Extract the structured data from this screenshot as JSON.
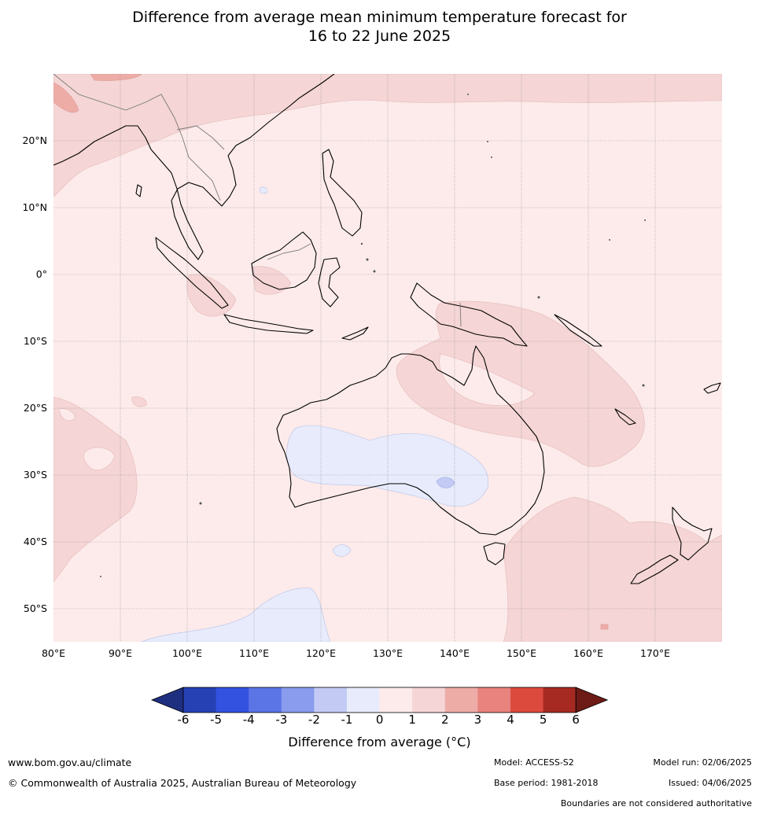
{
  "title": {
    "line1": "Difference from average mean minimum temperature forecast for",
    "line2": "16 to 22 June 2025"
  },
  "map": {
    "lat_ticks": [
      "20°N",
      "10°N",
      "0°",
      "10°S",
      "20°S",
      "30°S",
      "40°S",
      "50°S"
    ],
    "lon_ticks": [
      "80°E",
      "90°E",
      "100°E",
      "110°E",
      "120°E",
      "130°E",
      "140°E",
      "150°E",
      "160°E",
      "170°E"
    ],
    "extent": {
      "lon_min": 80,
      "lon_max": 180,
      "lat_min": -55,
      "lat_max": 30
    }
  },
  "legend": {
    "labels": [
      "-6",
      "-5",
      "-4",
      "-3",
      "-2",
      "-1",
      "0",
      "1",
      "2",
      "3",
      "4",
      "5",
      "6"
    ],
    "colors": [
      "#1e2f80",
      "#2641b4",
      "#3352e0",
      "#5b74e6",
      "#8a9ced",
      "#c3cbf4",
      "#e7ebfb",
      "#fcebea",
      "#f5d5d5",
      "#eeaca7",
      "#e8837e",
      "#dc4a3e",
      "#a62a22",
      "#6e1a16"
    ],
    "title": "Difference from average (°C)"
  },
  "footer": {
    "website": "www.bom.gov.au/climate",
    "copyright": "© Commonwealth of Australia 2025, Australian Bureau of Meteorology",
    "model": "Model: ACCESS-S2",
    "model_run": "Model run: 02/06/2025",
    "base_period": "Base period: 1981-2018",
    "issued": "Issued: 04/06/2025",
    "disclaimer": "Boundaries are not considered authoritative"
  }
}
